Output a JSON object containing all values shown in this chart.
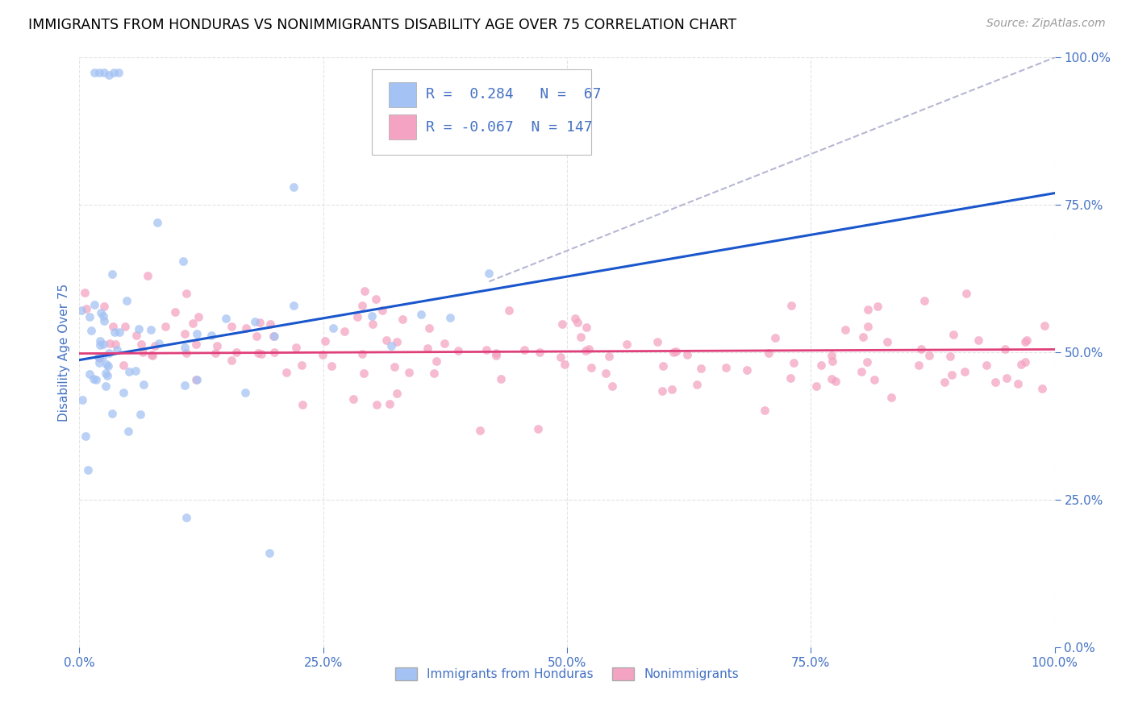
{
  "title": "IMMIGRANTS FROM HONDURAS VS NONIMMIGRANTS DISABILITY AGE OVER 75 CORRELATION CHART",
  "source": "Source: ZipAtlas.com",
  "ylabel": "Disability Age Over 75",
  "x_tick_labels": [
    "0.0%",
    "25.0%",
    "50.0%",
    "75.0%",
    "100.0%"
  ],
  "x_tick_positions": [
    0.0,
    0.25,
    0.5,
    0.75,
    1.0
  ],
  "y_tick_labels": [
    "0.0%",
    "25.0%",
    "50.0%",
    "75.0%",
    "100.0%"
  ],
  "y_tick_positions": [
    0.0,
    0.25,
    0.5,
    0.75,
    1.0
  ],
  "xlim": [
    0.0,
    1.0
  ],
  "ylim": [
    0.0,
    1.0
  ],
  "blue_R": 0.284,
  "blue_N": 67,
  "pink_R": -0.067,
  "pink_N": 147,
  "blue_color": "#a4c2f4",
  "pink_color": "#f4a4c2",
  "blue_line_color": "#1a56cc",
  "pink_line_color": "#e0407a",
  "diagonal_line_color": "#aaaacc",
  "title_color": "#000000",
  "axis_label_color": "#4472c4",
  "tick_label_color": "#4472c4",
  "source_color": "#999999",
  "legend_R_color": "#4472c4",
  "title_fontsize": 12.5,
  "source_fontsize": 10,
  "axis_label_fontsize": 11,
  "tick_label_fontsize": 11,
  "legend_fontsize": 13,
  "background_color": "#ffffff",
  "grid_color": "#dddddd",
  "blue_line_x": [
    0.0,
    1.0
  ],
  "blue_line_y": [
    0.487,
    0.77
  ],
  "pink_line_x": [
    0.0,
    1.0
  ],
  "pink_line_y": [
    0.498,
    0.505
  ],
  "diag_line_x": [
    0.42,
    1.0
  ],
  "diag_line_y": [
    0.62,
    1.0
  ]
}
